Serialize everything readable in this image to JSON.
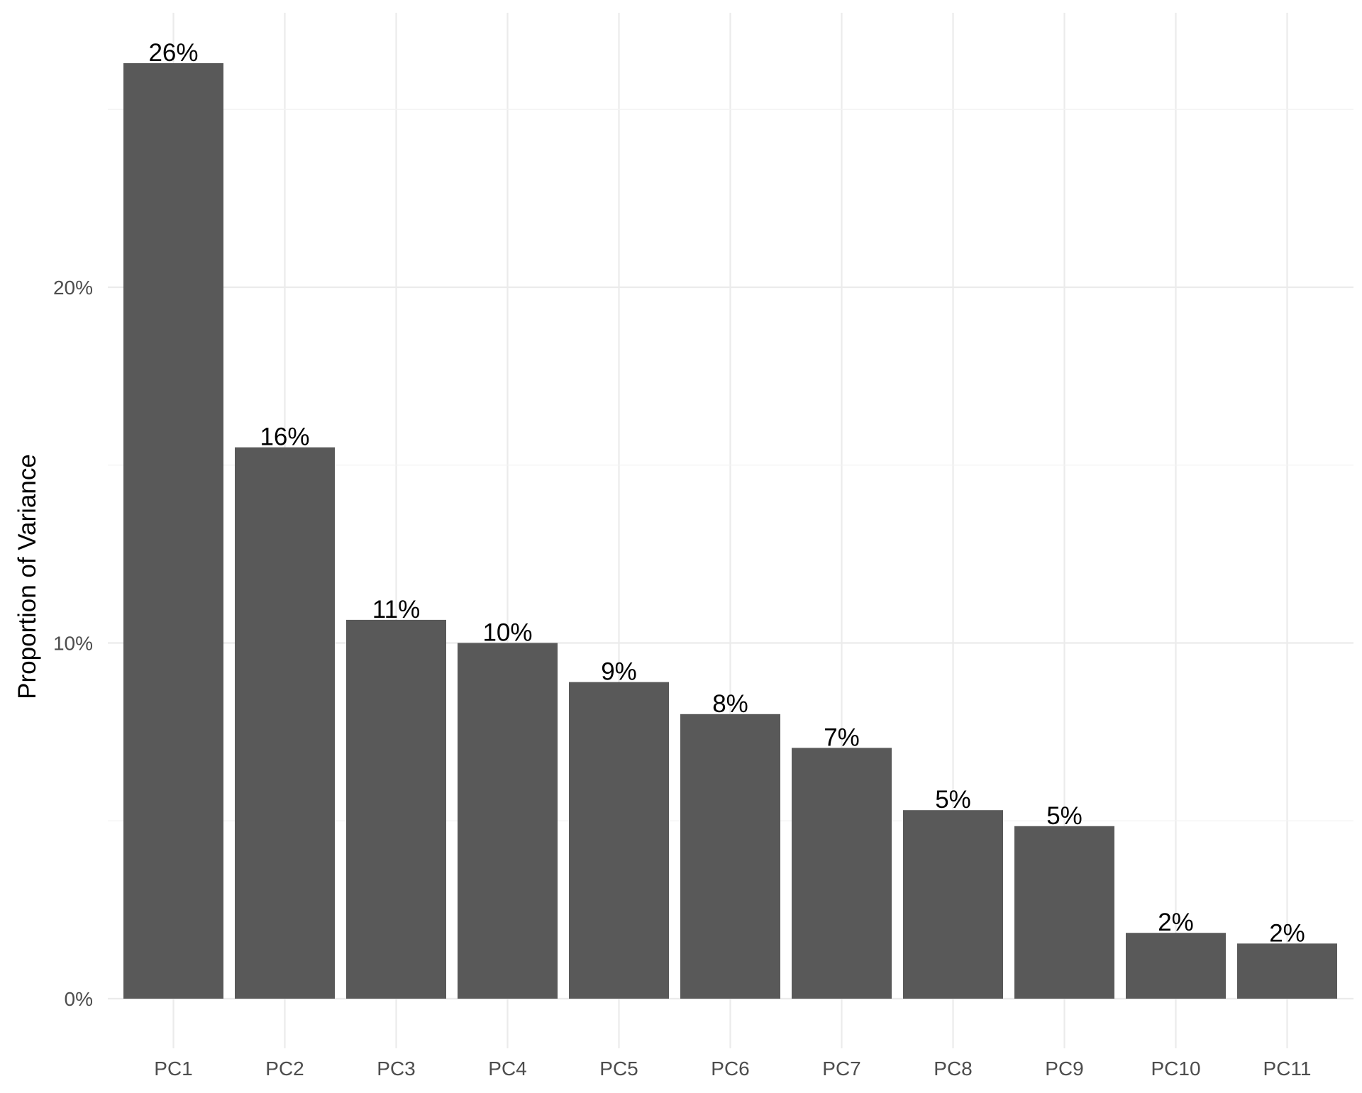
{
  "chart_data": {
    "type": "bar",
    "title": "",
    "xlabel": "",
    "ylabel": "Proportion of Variance",
    "categories": [
      "PC1",
      "PC2",
      "PC3",
      "PC4",
      "PC5",
      "PC6",
      "PC7",
      "PC8",
      "PC9",
      "PC10",
      "PC11"
    ],
    "values": [
      26.3,
      15.5,
      10.65,
      10.0,
      8.9,
      8.0,
      7.05,
      5.3,
      4.85,
      1.85,
      1.55
    ],
    "data_labels": [
      "26%",
      "16%",
      "11%",
      "10%",
      "9%",
      "8%",
      "7%",
      "5%",
      "5%",
      "2%",
      "2%"
    ],
    "ylim": [
      0,
      26.3
    ],
    "y_ticks": [
      0,
      10,
      20
    ],
    "y_tick_labels": [
      "0%",
      "10%",
      "20%"
    ],
    "y_minor_ticks": [
      5,
      15,
      25
    ],
    "grid": true,
    "legend": "none",
    "colors": {
      "bar": "#595959",
      "grid_major": "#ebebeb",
      "grid_minor": "#f3f3f3",
      "tick_text": "#4d4d4d",
      "label_text": "#000000",
      "background": "#ffffff"
    }
  }
}
